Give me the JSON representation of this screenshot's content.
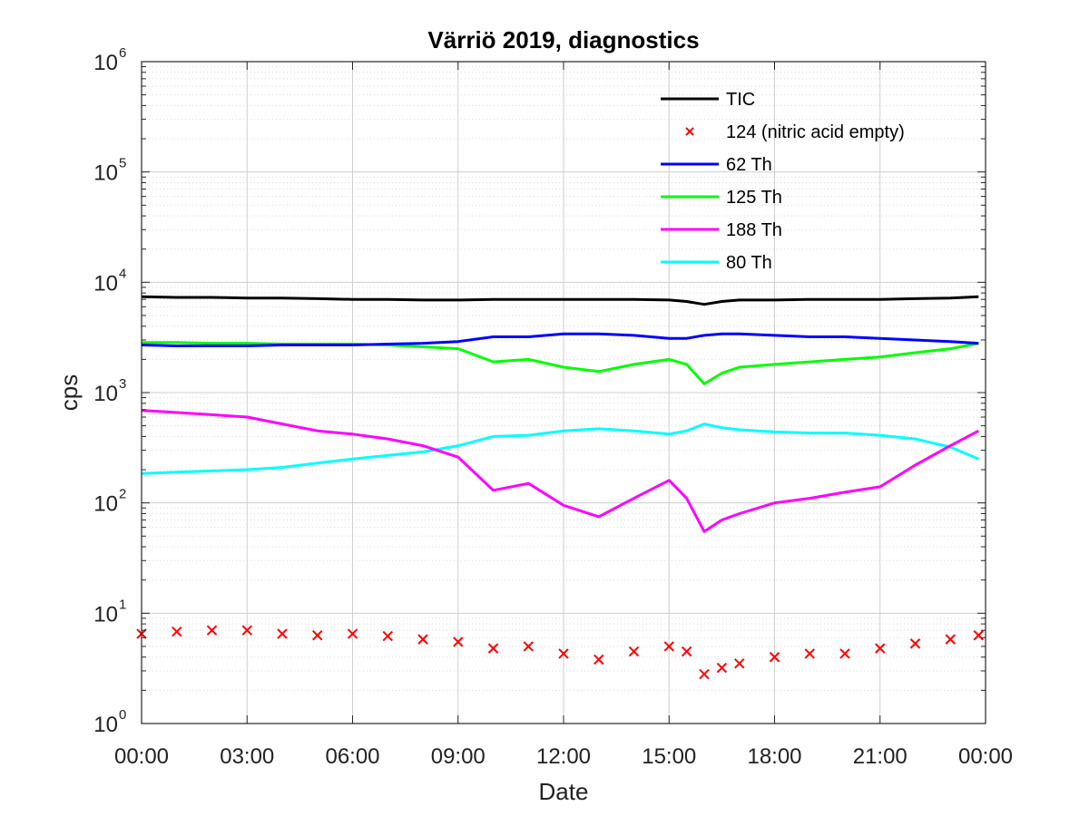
{
  "chart_data": {
    "type": "line",
    "title": "Värriö 2019, diagnostics",
    "xlabel": "Date",
    "ylabel": "cps",
    "xlim": [
      0,
      24
    ],
    "ylim": [
      1,
      1000000
    ],
    "yscale": "log",
    "grid": true,
    "legend_position": "top-right",
    "x_ticks": [
      0,
      3,
      6,
      9,
      12,
      15,
      18,
      21,
      24
    ],
    "x_tick_labels": [
      "00:00",
      "03:00",
      "06:00",
      "09:00",
      "12:00",
      "15:00",
      "18:00",
      "21:00",
      "00:00"
    ],
    "y_tick_base": "10",
    "y_tick_exponents": [
      "0",
      "1",
      "2",
      "3",
      "4",
      "5",
      "6"
    ],
    "x": [
      0,
      1,
      2,
      3,
      4,
      5,
      6,
      7,
      8,
      9,
      10,
      11,
      12,
      13,
      14,
      15,
      15.5,
      16,
      16.5,
      17,
      18,
      19,
      20,
      21,
      22,
      23,
      23.8
    ],
    "series": [
      {
        "name": "TIC",
        "color": "#000000",
        "style": "line",
        "values": [
          7400,
          7300,
          7300,
          7200,
          7200,
          7100,
          7000,
          7000,
          6900,
          6900,
          7000,
          7000,
          7000,
          7000,
          7000,
          6900,
          6700,
          6300,
          6700,
          6900,
          6900,
          7000,
          7000,
          7000,
          7100,
          7200,
          7400
        ]
      },
      {
        "name": "124 (nitric acid empty)",
        "color": "#ff0000",
        "style": "marker-x",
        "values": [
          6.5,
          6.8,
          7.0,
          7.0,
          6.5,
          6.3,
          6.5,
          6.2,
          5.8,
          5.5,
          4.8,
          5.0,
          4.3,
          3.8,
          4.5,
          5.0,
          4.5,
          2.8,
          3.2,
          3.5,
          4.0,
          4.3,
          4.3,
          4.8,
          5.3,
          5.8,
          6.3
        ]
      },
      {
        "name": "62 Th",
        "color": "#0000ff",
        "style": "line",
        "values": [
          2700,
          2650,
          2650,
          2650,
          2700,
          2700,
          2700,
          2750,
          2800,
          2900,
          3200,
          3200,
          3400,
          3400,
          3300,
          3100,
          3100,
          3300,
          3400,
          3400,
          3300,
          3200,
          3200,
          3100,
          3000,
          2900,
          2800
        ]
      },
      {
        "name": "125 Th",
        "color": "#00ff00",
        "style": "line",
        "values": [
          2850,
          2850,
          2800,
          2800,
          2750,
          2750,
          2750,
          2700,
          2600,
          2500,
          1900,
          2000,
          1700,
          1550,
          1800,
          2000,
          1800,
          1200,
          1500,
          1700,
          1800,
          1900,
          2000,
          2100,
          2300,
          2500,
          2800
        ]
      },
      {
        "name": "188 Th",
        "color": "#ff00ff",
        "style": "line",
        "values": [
          690,
          660,
          630,
          600,
          520,
          450,
          420,
          380,
          330,
          260,
          130,
          150,
          95,
          75,
          110,
          160,
          110,
          55,
          70,
          80,
          100,
          110,
          125,
          140,
          220,
          330,
          450
        ]
      },
      {
        "name": "80 Th",
        "color": "#00ffff",
        "style": "line",
        "values": [
          185,
          190,
          195,
          200,
          210,
          230,
          250,
          270,
          290,
          330,
          400,
          410,
          450,
          470,
          450,
          420,
          450,
          520,
          480,
          460,
          440,
          430,
          430,
          410,
          380,
          320,
          250
        ]
      }
    ]
  }
}
